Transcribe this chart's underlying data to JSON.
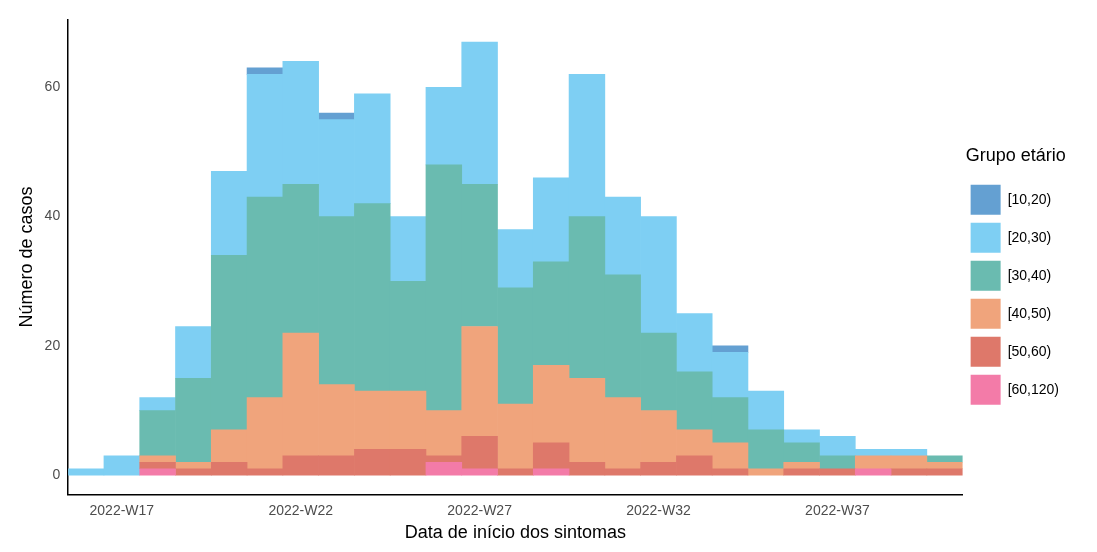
{
  "chart_data": {
    "type": "bar",
    "stacked": true,
    "xlabel": "Data de início dos sintomas",
    "ylabel": "Número de casos",
    "legend_title": "Grupo etário",
    "legend": "right",
    "grid": false,
    "categories": [
      null,
      "2022-W17",
      null,
      null,
      null,
      null,
      "2022-W22",
      null,
      null,
      null,
      null,
      "2022-W27",
      null,
      null,
      null,
      null,
      "2022-W32",
      null,
      null,
      null,
      null,
      "2022-W37",
      null,
      null,
      null
    ],
    "ylim": [
      -3,
      70.5
    ],
    "yticks": [
      0,
      20,
      40,
      60
    ],
    "series": [
      {
        "name": "[60,120)",
        "color": "#f37ba8",
        "values": [
          0,
          0,
          1,
          0,
          0,
          0,
          0,
          0,
          0,
          0,
          2,
          1,
          0,
          1,
          0,
          0,
          0,
          0,
          0,
          0,
          0,
          0,
          1,
          0,
          0
        ]
      },
      {
        "name": "[50,60)",
        "color": "#de786a",
        "values": [
          0,
          0,
          1,
          1,
          2,
          1,
          3,
          3,
          4,
          4,
          1,
          5,
          1,
          4,
          2,
          1,
          2,
          3,
          1,
          0,
          1,
          1,
          0,
          1,
          1
        ]
      },
      {
        "name": "[40,50)",
        "color": "#f0a47c",
        "values": [
          0,
          0,
          1,
          1,
          5,
          11,
          19,
          11,
          9,
          9,
          7,
          17,
          10,
          12,
          13,
          11,
          8,
          4,
          4,
          1,
          1,
          0,
          2,
          2,
          1
        ]
      },
      {
        "name": "[30,40)",
        "color": "#6abbb0",
        "values": [
          0,
          0,
          7,
          13,
          27,
          31,
          23,
          26,
          29,
          17,
          38,
          22,
          18,
          16,
          25,
          19,
          12,
          9,
          7,
          6,
          3,
          2,
          0,
          0,
          1
        ]
      },
      {
        "name": "[20,30)",
        "color": "#7ecff3",
        "values": [
          1,
          3,
          2,
          8,
          13,
          19,
          19,
          15,
          17,
          10,
          12,
          22,
          9,
          13,
          22,
          12,
          18,
          9,
          7,
          6,
          2,
          3,
          1,
          1,
          0
        ]
      },
      {
        "name": "[10,20)",
        "color": "#64a0d2",
        "values": [
          0,
          0,
          0,
          0,
          0,
          1,
          0,
          1,
          0,
          0,
          0,
          0,
          0,
          0,
          0,
          0,
          0,
          0,
          1,
          0,
          0,
          0,
          0,
          0,
          0
        ]
      }
    ]
  }
}
